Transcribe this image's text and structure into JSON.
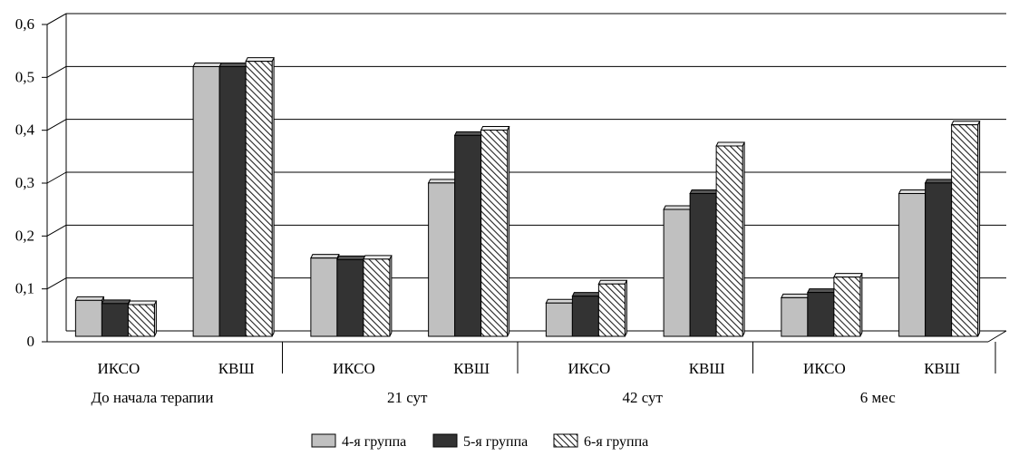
{
  "chart_data": {
    "type": "bar",
    "title": "",
    "xlabel": "",
    "ylabel": "",
    "ylim": [
      0,
      0.6
    ],
    "yticks": [
      "0",
      "0,1",
      "0,2",
      "0,3",
      "0,4",
      "0,5",
      "0,6"
    ],
    "grid": true,
    "legend_position": "bottom",
    "groups": [
      {
        "label": "До начала терапии",
        "categories": [
          "ИКСО",
          "КВШ"
        ]
      },
      {
        "label": "21 сут",
        "categories": [
          "ИКСО",
          "КВШ"
        ]
      },
      {
        "label": "42 сут",
        "categories": [
          "ИКСО",
          "КВШ"
        ]
      },
      {
        "label": "6 мес",
        "categories": [
          "ИКСО",
          "КВШ"
        ]
      }
    ],
    "series": [
      {
        "name": "4-я группа",
        "color": "#c0c0c0",
        "pattern": "solid-light",
        "values": [
          0.068,
          0.51,
          0.148,
          0.29,
          0.063,
          0.24,
          0.073,
          0.27
        ]
      },
      {
        "name": "5-я группа",
        "color": "#333333",
        "pattern": "solid-dark",
        "values": [
          0.062,
          0.51,
          0.145,
          0.38,
          0.076,
          0.27,
          0.083,
          0.29
        ]
      },
      {
        "name": "6-я группа",
        "color": "#ffffff",
        "pattern": "diagonal-hatch",
        "values": [
          0.06,
          0.52,
          0.146,
          0.39,
          0.099,
          0.36,
          0.112,
          0.4
        ]
      }
    ]
  }
}
